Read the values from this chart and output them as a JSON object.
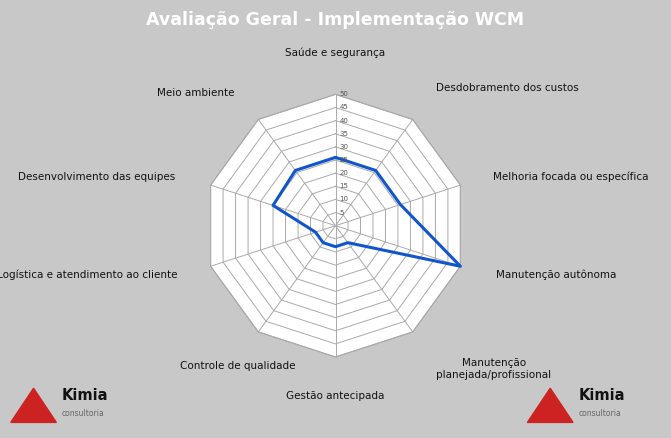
{
  "title": "Avaliação Geral - Implementação WCM",
  "title_bg": "#b22222",
  "title_color": "#ffffff",
  "categories": [
    "Saúde e segurança",
    "Desdobramento dos custos",
    "Melhoria focada ou específica",
    "Manutenção autônoma",
    "Manutenção\nplanejada/profissional",
    "Gestão antecipada",
    "Controle de qualidade",
    "Logística e atendimento ao cliente",
    "Desenvolvimento das equipes",
    "Meio ambiente"
  ],
  "values": [
    26,
    26,
    26,
    50,
    8,
    8,
    8,
    8,
    25,
    26
  ],
  "max_val": 50,
  "grid_steps": 10,
  "grid_color": "#aaaaaa",
  "line_color": "#1155cc",
  "line_width": 2.2,
  "outer_bg": "#c8c8c8",
  "radar_bg": "#ffffff",
  "tick_vals": [
    5,
    10,
    15,
    20,
    25,
    30,
    35,
    40,
    45,
    50
  ],
  "label_fontsize": 7.5,
  "title_fontsize": 12.5
}
